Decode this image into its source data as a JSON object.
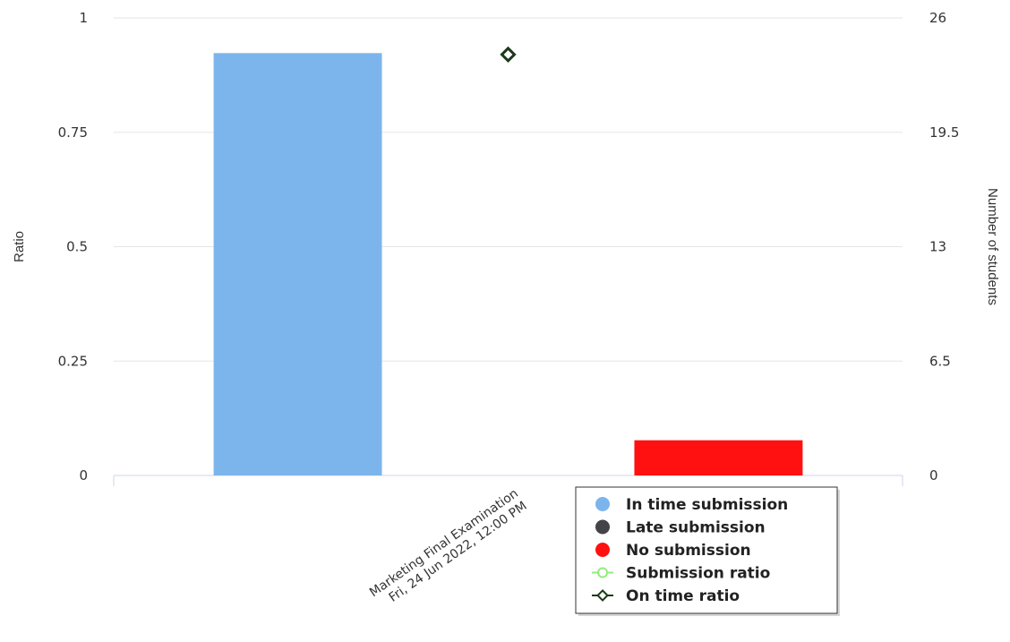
{
  "chart_data": {
    "type": "bar",
    "categories": [
      {
        "line1": "Marketing Final Examination",
        "line2": "Fri, 24 Jun 2022, 12:00 PM"
      }
    ],
    "y_left": {
      "label": "Ratio",
      "range": [
        0,
        1
      ],
      "ticks": [
        "0",
        "0.25",
        "0.5",
        "0.75",
        "1"
      ]
    },
    "y_right": {
      "label": "Number of students",
      "range": [
        0,
        26
      ],
      "ticks": [
        "0",
        "6.5",
        "13",
        "19.5",
        "26"
      ]
    },
    "series": [
      {
        "name": "In time submission",
        "type": "bar",
        "axis": "right",
        "color": "#7cb5ec",
        "values": [
          24
        ]
      },
      {
        "name": "Late submission",
        "type": "bar",
        "axis": "right",
        "color": "#434348",
        "values": [
          0
        ]
      },
      {
        "name": "No submission",
        "type": "bar",
        "axis": "right",
        "color": "#ff1111",
        "values": [
          2
        ]
      },
      {
        "name": "Submission ratio",
        "type": "line",
        "axis": "left",
        "color": "#90ed7d",
        "marker": "circle",
        "values": [
          null
        ]
      },
      {
        "name": "On time ratio",
        "type": "line",
        "axis": "left",
        "color": "#1a3a1a",
        "marker": "diamond",
        "values": [
          0.92
        ]
      }
    ],
    "grid": true,
    "legend_position": "bottom-right"
  }
}
